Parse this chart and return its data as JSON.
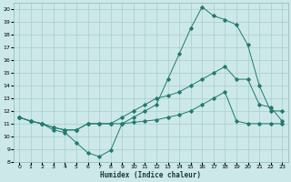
{
  "xlabel": "Humidex (Indice chaleur)",
  "background_color": "#cce8e8",
  "grid_color": "#aacece",
  "line_color": "#217a6e",
  "xlim": [
    -0.5,
    23.5
  ],
  "ylim": [
    8,
    20.5
  ],
  "xticks": [
    0,
    1,
    2,
    3,
    4,
    5,
    6,
    7,
    8,
    9,
    10,
    11,
    12,
    13,
    14,
    15,
    16,
    17,
    18,
    19,
    20,
    21,
    22,
    23
  ],
  "yticks": [
    8,
    9,
    10,
    11,
    12,
    13,
    14,
    15,
    16,
    17,
    18,
    19,
    20
  ],
  "series1_x": [
    0,
    1,
    2,
    3,
    4,
    5,
    6,
    7,
    8,
    9,
    10,
    11,
    12,
    13,
    14,
    15,
    16,
    17,
    18,
    19,
    20,
    21,
    22,
    23
  ],
  "series1_y": [
    11.5,
    11.2,
    11.0,
    10.5,
    10.3,
    9.5,
    8.7,
    8.4,
    8.9,
    11.0,
    11.5,
    12.0,
    12.5,
    14.5,
    16.5,
    18.5,
    20.2,
    19.5,
    19.2,
    18.8,
    17.2,
    14.0,
    12.0,
    12.0
  ],
  "series2_x": [
    0,
    1,
    2,
    3,
    4,
    5,
    6,
    7,
    8,
    9,
    10,
    11,
    12,
    13,
    14,
    15,
    16,
    17,
    18,
    19,
    20,
    21,
    22,
    23
  ],
  "series2_y": [
    11.5,
    11.2,
    11.0,
    10.7,
    10.5,
    10.5,
    11.0,
    11.0,
    11.0,
    11.0,
    11.1,
    11.2,
    11.3,
    11.5,
    11.7,
    12.0,
    12.5,
    13.0,
    13.5,
    11.2,
    11.0,
    11.0,
    11.0,
    11.0
  ],
  "series3_x": [
    0,
    1,
    2,
    3,
    4,
    5,
    6,
    7,
    8,
    9,
    10,
    11,
    12,
    13,
    14,
    15,
    16,
    17,
    18,
    19,
    20,
    21,
    22,
    23
  ],
  "series3_y": [
    11.5,
    11.2,
    11.0,
    10.7,
    10.5,
    10.5,
    11.0,
    11.0,
    11.0,
    11.5,
    12.0,
    12.5,
    13.0,
    13.2,
    13.5,
    14.0,
    14.5,
    15.0,
    15.5,
    14.5,
    14.5,
    12.5,
    12.3,
    11.2
  ]
}
